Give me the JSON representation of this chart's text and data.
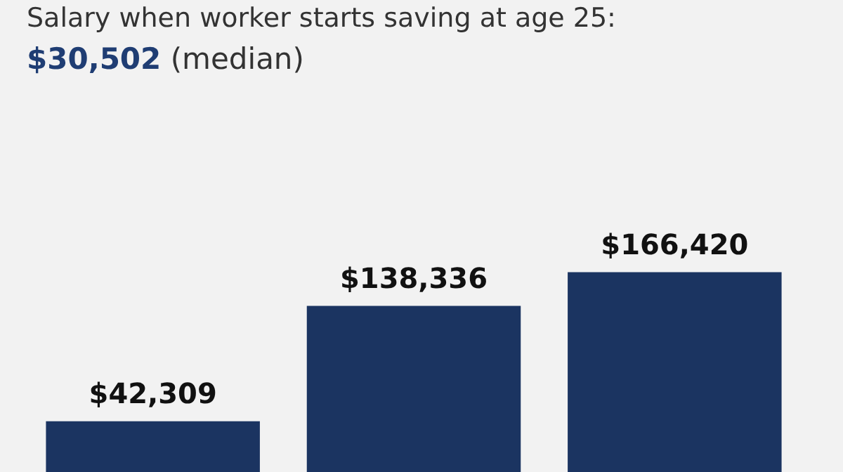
{
  "chart_data": {
    "type": "bar",
    "title": "Salary when worker starts saving at age 25:",
    "subtitle": "$30,502 (median)",
    "categories": [
      null,
      null,
      null
    ],
    "values": [
      42309,
      138336,
      166420
    ],
    "value_labels": [
      "$42,309",
      "$138,336",
      "$166,420"
    ],
    "color": "#1b3461",
    "tick_labels": false
  }
}
